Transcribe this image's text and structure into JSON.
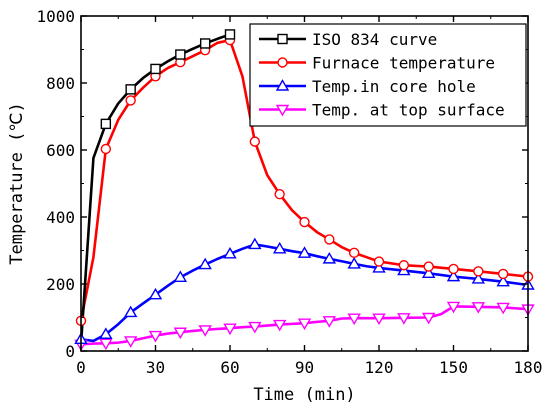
{
  "chart_data": {
    "type": "line",
    "xlabel": "Time (min)",
    "ylabel": "Temperature (℃)",
    "xlim": [
      0,
      180
    ],
    "ylim": [
      0,
      1000
    ],
    "xticks": [
      0,
      30,
      60,
      90,
      120,
      150,
      180
    ],
    "yticks": [
      0,
      200,
      400,
      600,
      800,
      1000
    ],
    "grid": false,
    "legend_position": "top-right",
    "series": [
      {
        "name": "ISO 834 curve",
        "color": "#000000",
        "marker": "square",
        "x": [
          0,
          5,
          10,
          15,
          20,
          25,
          30,
          35,
          40,
          45,
          50,
          55,
          60
        ],
        "y": [
          20,
          576,
          678,
          739,
          781,
          815,
          842,
          865,
          885,
          902,
          918,
          932,
          945
        ],
        "marker_x": [
          10,
          20,
          30,
          40,
          50,
          60
        ]
      },
      {
        "name": "Furnace temperature",
        "color": "#ff0000",
        "marker": "circle",
        "x": [
          0,
          5,
          10,
          15,
          20,
          25,
          30,
          35,
          40,
          45,
          50,
          55,
          60,
          65,
          70,
          75,
          80,
          85,
          90,
          95,
          100,
          105,
          110,
          115,
          120,
          130,
          140,
          150,
          160,
          170,
          180
        ],
        "y": [
          90,
          280,
          603,
          690,
          748,
          786,
          820,
          845,
          862,
          880,
          898,
          920,
          928,
          820,
          625,
          525,
          468,
          420,
          385,
          355,
          333,
          310,
          293,
          280,
          267,
          256,
          252,
          245,
          238,
          230,
          222
        ],
        "marker_x": [
          0,
          10,
          20,
          30,
          40,
          50,
          60,
          70,
          80,
          90,
          100,
          110,
          120,
          130,
          140,
          150,
          160,
          170,
          180
        ]
      },
      {
        "name": "Temp.in core hole",
        "color": "#0000ff",
        "marker": "triangle-up",
        "x": [
          0,
          5,
          10,
          15,
          20,
          25,
          30,
          35,
          40,
          45,
          50,
          55,
          60,
          65,
          70,
          75,
          80,
          85,
          90,
          95,
          100,
          105,
          110,
          115,
          120,
          130,
          140,
          150,
          160,
          170,
          180
        ],
        "y": [
          35,
          30,
          50,
          80,
          115,
          142,
          168,
          195,
          220,
          240,
          258,
          275,
          290,
          305,
          318,
          312,
          305,
          298,
          292,
          283,
          275,
          268,
          260,
          253,
          248,
          240,
          232,
          222,
          215,
          207,
          197
        ],
        "marker_x": [
          0,
          10,
          20,
          30,
          40,
          50,
          60,
          70,
          80,
          90,
          100,
          110,
          120,
          130,
          140,
          150,
          160,
          170,
          180
        ]
      },
      {
        "name": "Temp. at top surface",
        "color": "#ff00ff",
        "marker": "triangle-down",
        "x": [
          0,
          5,
          10,
          15,
          20,
          25,
          30,
          35,
          40,
          45,
          50,
          55,
          60,
          65,
          70,
          75,
          80,
          85,
          90,
          95,
          100,
          105,
          110,
          115,
          120,
          130,
          140,
          145,
          150,
          160,
          170,
          180
        ],
        "y": [
          20,
          22,
          23,
          25,
          30,
          38,
          46,
          52,
          56,
          60,
          63,
          66,
          68,
          71,
          73,
          76,
          79,
          81,
          83,
          87,
          90,
          97,
          98,
          98,
          98,
          99,
          100,
          110,
          133,
          132,
          130,
          125
        ],
        "marker_x": [
          0,
          10,
          20,
          30,
          40,
          50,
          60,
          70,
          80,
          90,
          100,
          110,
          120,
          130,
          140,
          150,
          160,
          170,
          180
        ]
      }
    ]
  }
}
